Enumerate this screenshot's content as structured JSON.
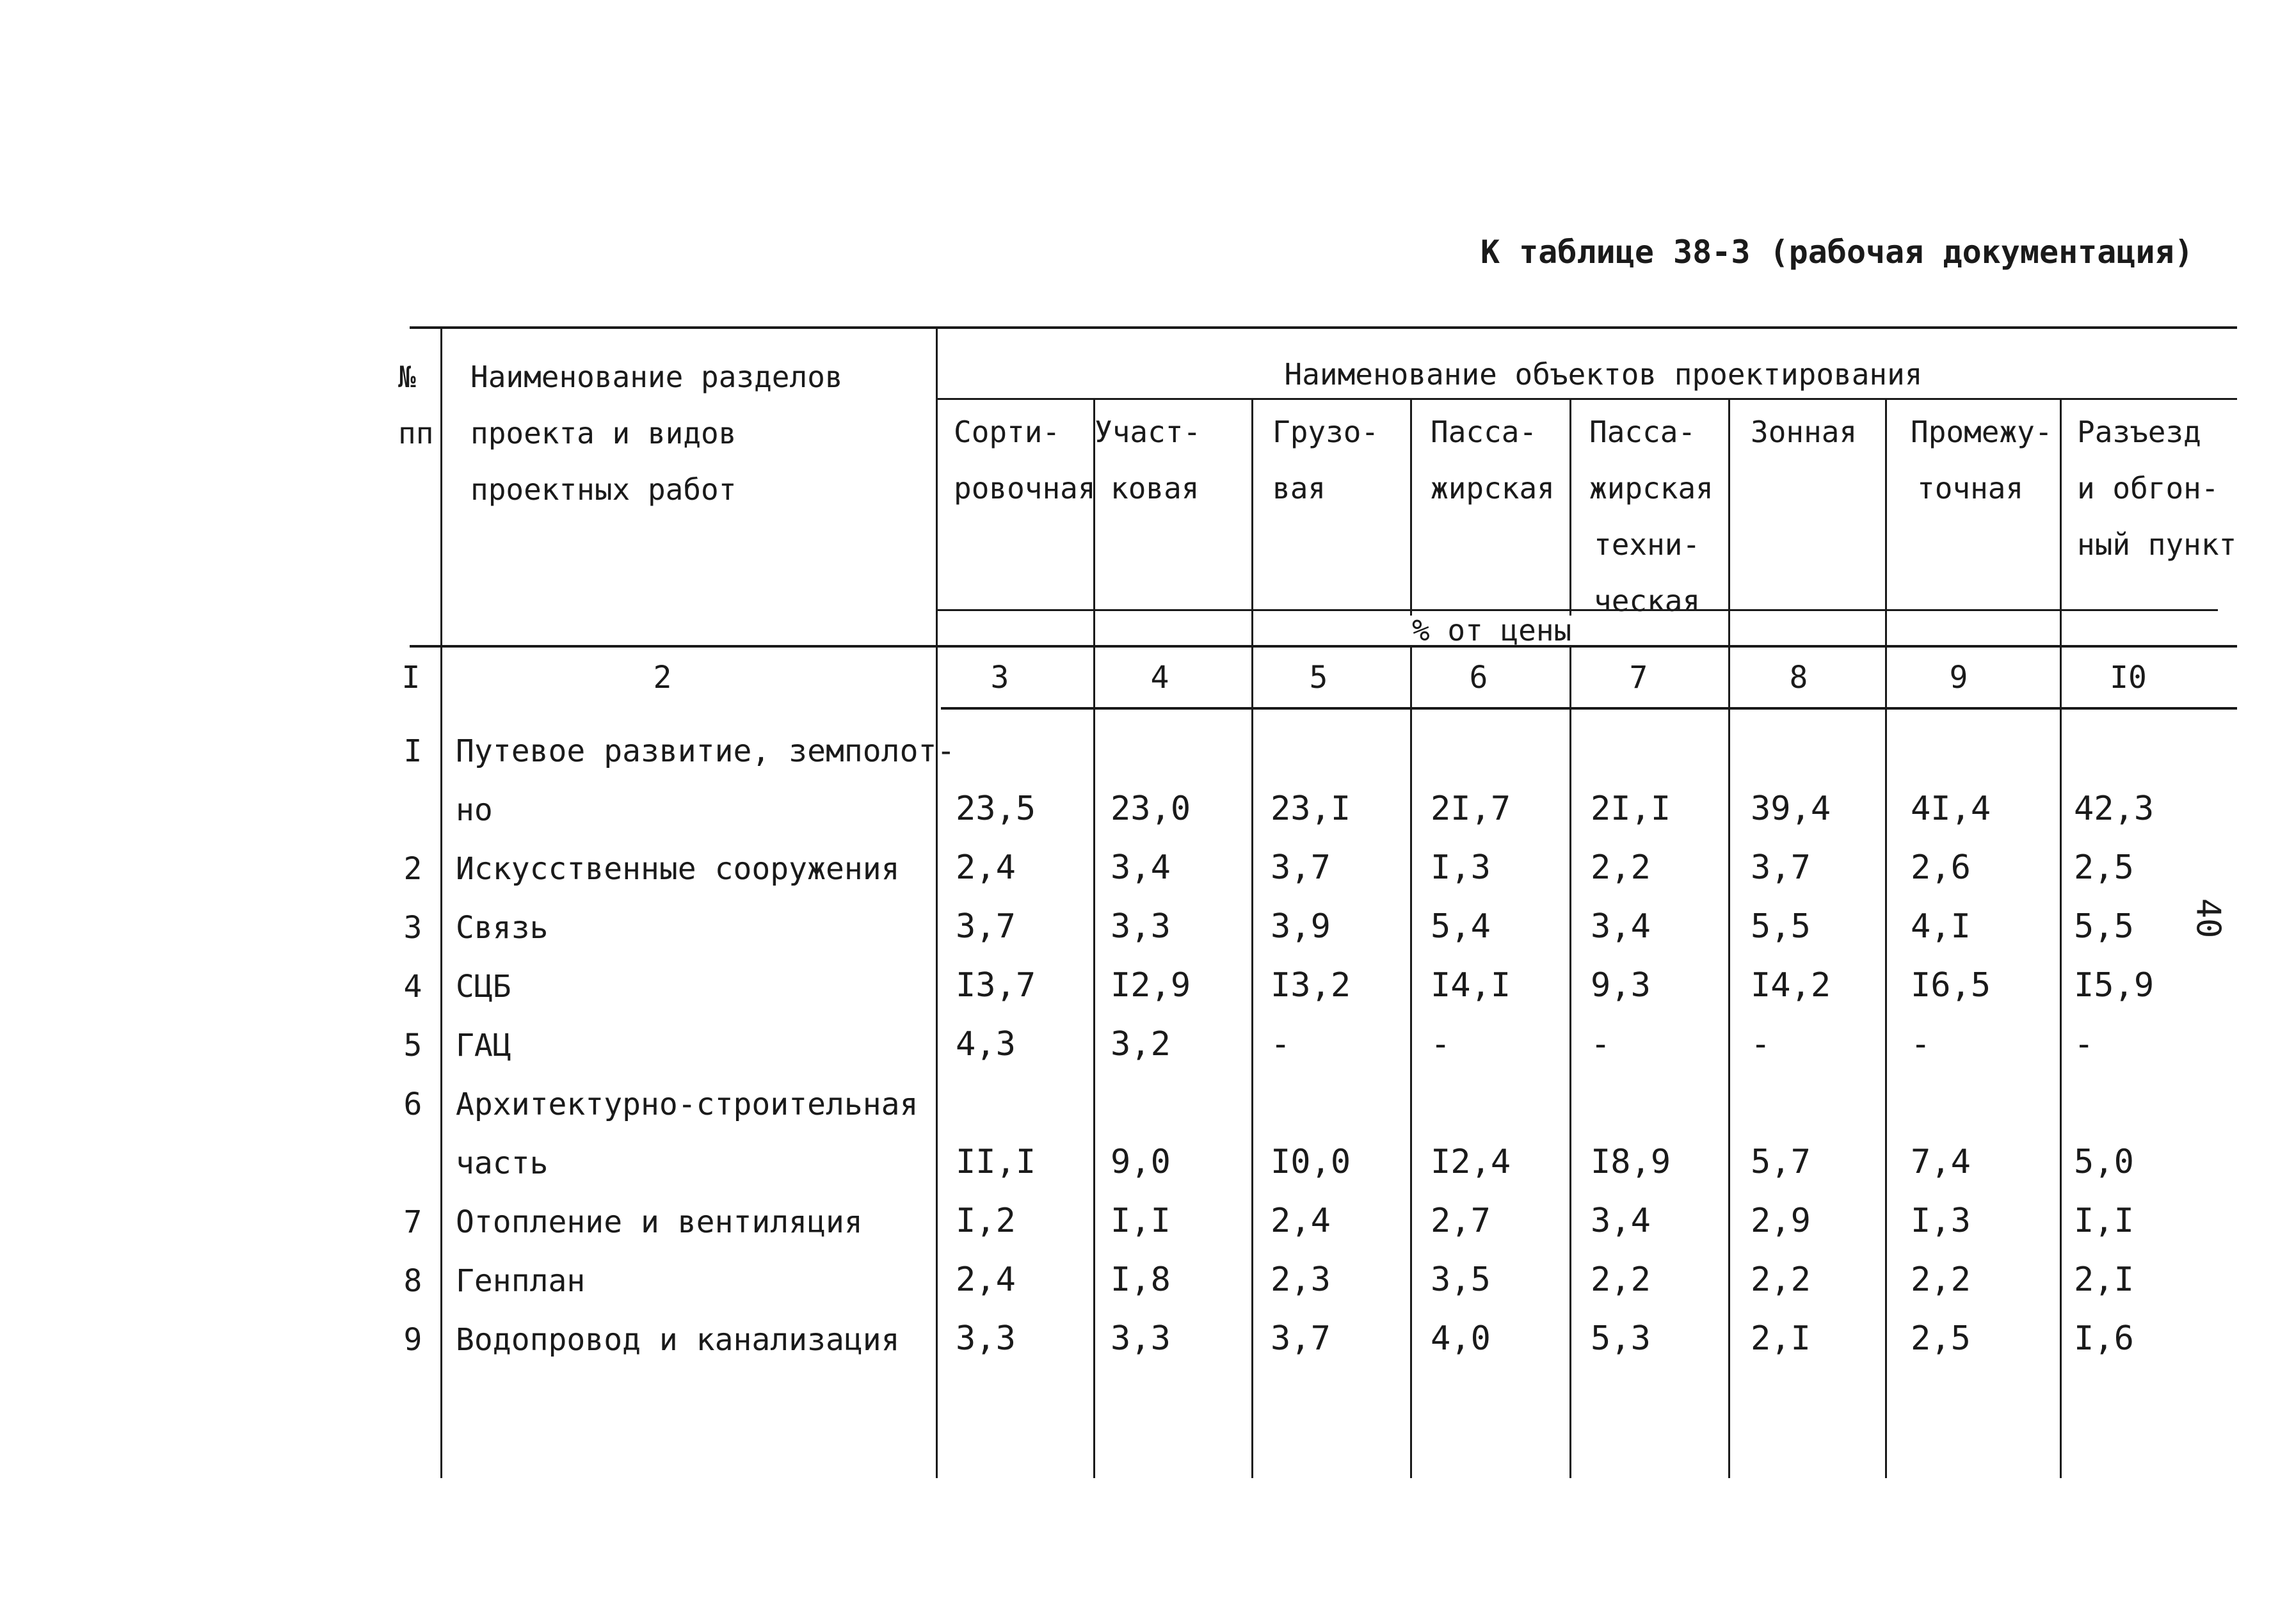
{
  "caption": "К таблице 38-3 (рабочая документация)",
  "page_number": "40",
  "header": {
    "num_label": [
      "№",
      "пп"
    ],
    "name_label": [
      "Наименование разделов",
      "проекта и видов",
      "проектных работ"
    ],
    "objects_title": "Наименование объектов проектирования",
    "columns": [
      [
        "Сорти-",
        "ровочная"
      ],
      [
        "Участ-",
        "ковая"
      ],
      [
        "Грузо-",
        "вая"
      ],
      [
        "Пасса-",
        "жирская"
      ],
      [
        "Пасса-",
        "жирская",
        "техни-",
        "ческая"
      ],
      [
        "Зонная"
      ],
      [
        "Промежу-",
        "точная"
      ],
      [
        "Разъезд",
        "и обгон-",
        "ный пункт"
      ]
    ],
    "unit": "% от цены",
    "col_numbers": [
      "I",
      "2",
      "3",
      "4",
      "5",
      "6",
      "7",
      "8",
      "9",
      "I0"
    ]
  },
  "rows": [
    {
      "num": "I",
      "name": [
        "Путевое развитие, земполот-",
        "но"
      ],
      "values": [
        "23,5",
        "23,0",
        "23,I",
        "2I,7",
        "2I,I",
        "39,4",
        "4I,4",
        "42,3"
      ]
    },
    {
      "num": "2",
      "name": [
        "Искусственные сооружения"
      ],
      "values": [
        "2,4",
        "3,4",
        "3,7",
        "I,3",
        "2,2",
        "3,7",
        "2,6",
        "2,5"
      ]
    },
    {
      "num": "3",
      "name": [
        "Связь"
      ],
      "values": [
        "3,7",
        "3,3",
        "3,9",
        "5,4",
        "3,4",
        "5,5",
        "4,I",
        "5,5"
      ]
    },
    {
      "num": "4",
      "name": [
        "СЦБ"
      ],
      "values": [
        "I3,7",
        "I2,9",
        "I3,2",
        "I4,I",
        "9,3",
        "I4,2",
        "I6,5",
        "I5,9"
      ]
    },
    {
      "num": "5",
      "name": [
        "ГАЦ"
      ],
      "values": [
        "4,3",
        "3,2",
        "-",
        "-",
        "-",
        "-",
        "-",
        "-"
      ]
    },
    {
      "num": "6",
      "name": [
        "Архитектурно-строительная",
        "часть"
      ],
      "values": [
        "II,I",
        "9,0",
        "I0,0",
        "I2,4",
        "I8,9",
        "5,7",
        "7,4",
        "5,0"
      ]
    },
    {
      "num": "7",
      "name": [
        "Отопление и вентиляция"
      ],
      "values": [
        "I,2",
        "I,I",
        "2,4",
        "2,7",
        "3,4",
        "2,9",
        "I,3",
        "I,I"
      ]
    },
    {
      "num": "8",
      "name": [
        "Генплан"
      ],
      "values": [
        "2,4",
        "I,8",
        "2,3",
        "3,5",
        "2,2",
        "2,2",
        "2,2",
        "2,I"
      ]
    },
    {
      "num": "9",
      "name": [
        "Водопровод и канализация"
      ],
      "values": [
        "3,3",
        "3,3",
        "3,7",
        "4,0",
        "5,3",
        "2,I",
        "2,5",
        "I,6"
      ]
    }
  ]
}
